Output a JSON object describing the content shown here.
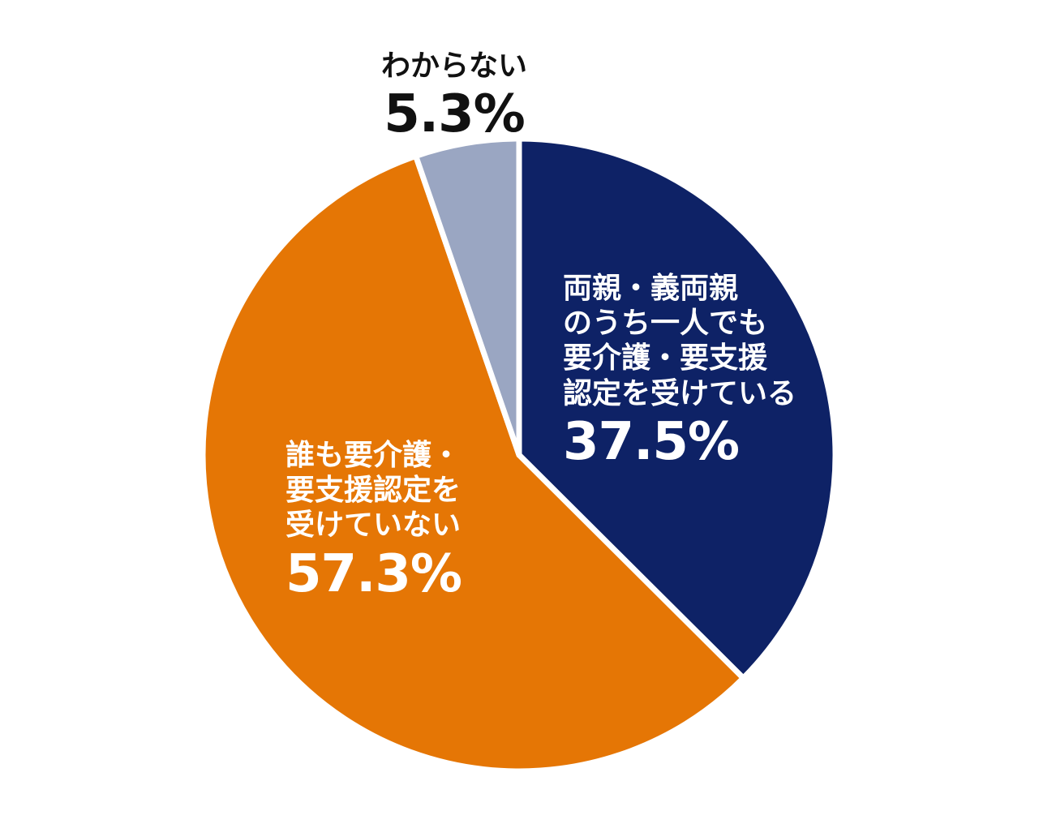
{
  "chart_data": {
    "type": "pie",
    "slices": [
      {
        "label_lines": [
          "両親・義両親",
          "のうち一人でも",
          "要介護・要支援",
          "認定を受けている"
        ],
        "value": 37.5,
        "value_label": "37.5%",
        "color": "#0e2266"
      },
      {
        "label_lines": [
          "誰も要介護・",
          "要支援認定を",
          "受けていない"
        ],
        "value": 57.3,
        "value_label": "57.3%",
        "color": "#e57605"
      },
      {
        "label_lines": [
          "わからない"
        ],
        "value": 5.3,
        "value_label": "5.3%",
        "color": "#9aa6c2"
      }
    ],
    "start_angle": "12 o'clock",
    "direction": "clockwise",
    "separator_color": "#ffffff"
  }
}
